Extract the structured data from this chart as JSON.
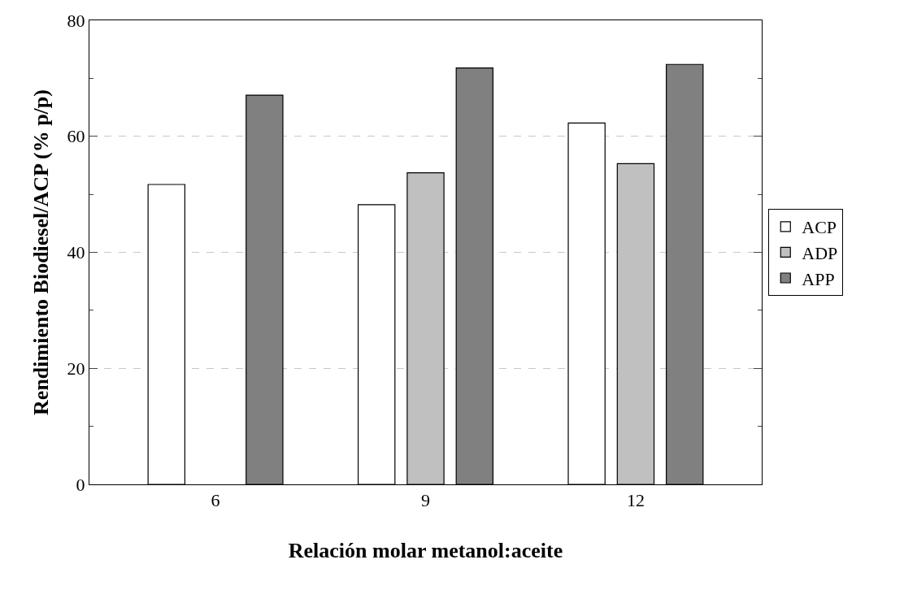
{
  "chart_data": {
    "type": "bar",
    "xlabel": "Relación molar metanol:aceite",
    "ylabel": "Rendimiento Biodiesel/ACP (% p/p)",
    "categories": [
      "6",
      "9",
      "12"
    ],
    "series": [
      {
        "name": "ACP",
        "color": "#ffffff",
        "values": [
          51.7,
          48.2,
          62.3
        ]
      },
      {
        "name": "ADP",
        "color": "#c0c0c0",
        "values": [
          null,
          53.7,
          55.3
        ]
      },
      {
        "name": "APP",
        "color": "#808080",
        "values": [
          67.1,
          71.8,
          72.4
        ]
      }
    ],
    "ylim": [
      0,
      80
    ],
    "yticks": [
      0,
      20,
      40,
      60,
      80
    ],
    "grid": "y",
    "legend": "right"
  }
}
